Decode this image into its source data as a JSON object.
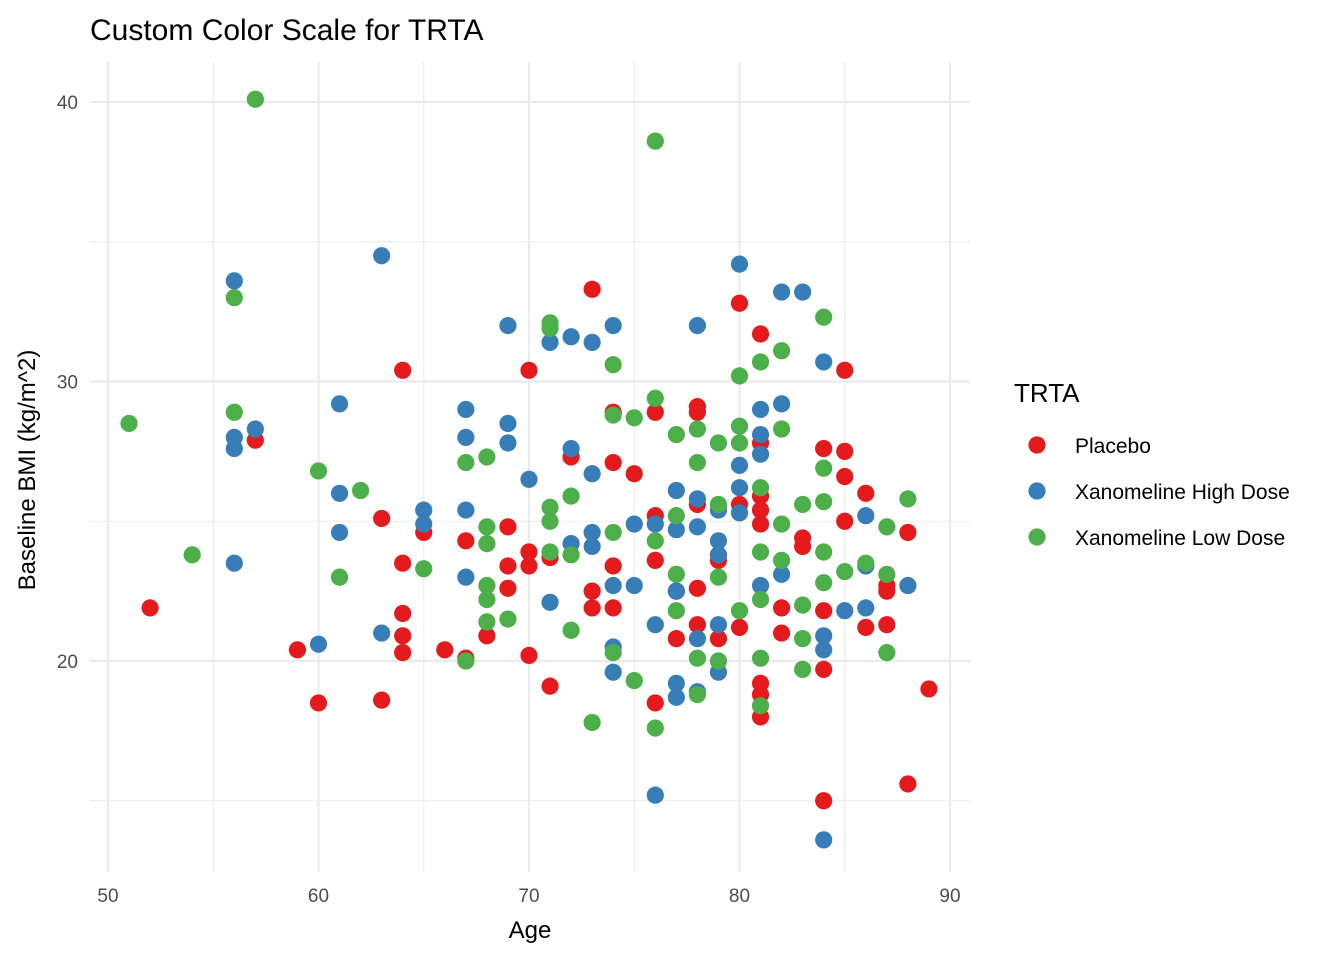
{
  "chart_data": {
    "type": "scatter",
    "title": "Custom Color Scale for TRTA",
    "xlabel": "Age",
    "ylabel": "Baseline BMI (kg/m^2)",
    "xlim": [
      49.1,
      90.9
    ],
    "ylim": [
      13.0,
      41.4
    ],
    "xticks": [
      50,
      60,
      70,
      80,
      90
    ],
    "yticks": [
      20,
      30,
      40
    ],
    "grid": true,
    "legend": {
      "title": "TRTA",
      "position": "right"
    },
    "series": [
      {
        "name": "Placebo",
        "color": "#E41A1C",
        "points": [
          [
            52,
            21.9
          ],
          [
            57,
            27.9
          ],
          [
            59,
            20.4
          ],
          [
            60,
            18.5
          ],
          [
            63,
            25.1
          ],
          [
            63,
            18.6
          ],
          [
            64,
            30.4
          ],
          [
            64,
            23.5
          ],
          [
            64,
            21.7
          ],
          [
            64,
            20.9
          ],
          [
            64,
            20.3
          ],
          [
            65,
            24.6
          ],
          [
            66,
            20.4
          ],
          [
            67,
            24.3
          ],
          [
            67,
            20.1
          ],
          [
            68,
            20.9
          ],
          [
            69,
            24.8
          ],
          [
            69,
            23.4
          ],
          [
            69,
            22.6
          ],
          [
            70,
            30.4
          ],
          [
            70,
            23.9
          ],
          [
            70,
            23.4
          ],
          [
            70,
            20.2
          ],
          [
            71,
            23.7
          ],
          [
            71,
            19.1
          ],
          [
            72,
            27.3
          ],
          [
            73,
            33.3
          ],
          [
            73,
            22.5
          ],
          [
            73,
            21.9
          ],
          [
            74,
            28.9
          ],
          [
            74,
            27.1
          ],
          [
            74,
            23.4
          ],
          [
            74,
            21.9
          ],
          [
            75,
            26.7
          ],
          [
            76,
            25.2
          ],
          [
            76,
            23.6
          ],
          [
            76,
            18.5
          ],
          [
            76,
            28.9
          ],
          [
            77,
            22.5
          ],
          [
            77,
            20.8
          ],
          [
            78,
            29.1
          ],
          [
            78,
            28.9
          ],
          [
            78,
            25.6
          ],
          [
            78,
            22.6
          ],
          [
            78,
            21.3
          ],
          [
            79,
            23.8
          ],
          [
            79,
            23.6
          ],
          [
            79,
            20.8
          ],
          [
            80,
            32.8
          ],
          [
            80,
            25.6
          ],
          [
            80,
            21.2
          ],
          [
            81,
            31.7
          ],
          [
            81,
            27.8
          ],
          [
            81,
            25.9
          ],
          [
            81,
            25.4
          ],
          [
            81,
            24.9
          ],
          [
            81,
            19.2
          ],
          [
            81,
            18.8
          ],
          [
            81,
            18.0
          ],
          [
            82,
            21.9
          ],
          [
            82,
            21.0
          ],
          [
            83,
            24.4
          ],
          [
            83,
            24.1
          ],
          [
            84,
            27.6
          ],
          [
            84,
            21.8
          ],
          [
            84,
            15.0
          ],
          [
            84,
            19.7
          ],
          [
            85,
            30.4
          ],
          [
            85,
            27.5
          ],
          [
            85,
            26.6
          ],
          [
            85,
            25.0
          ],
          [
            86,
            26.0
          ],
          [
            86,
            21.2
          ],
          [
            87,
            22.7
          ],
          [
            87,
            22.5
          ],
          [
            87,
            21.3
          ],
          [
            88,
            24.6
          ],
          [
            88,
            15.6
          ],
          [
            89,
            19.0
          ]
        ]
      },
      {
        "name": "Xanomeline High Dose",
        "color": "#377EB8",
        "points": [
          [
            56,
            33.6
          ],
          [
            56,
            28.0
          ],
          [
            56,
            27.6
          ],
          [
            56,
            23.5
          ],
          [
            57,
            28.3
          ],
          [
            60,
            20.6
          ],
          [
            61,
            29.2
          ],
          [
            61,
            26.0
          ],
          [
            61,
            24.6
          ],
          [
            63,
            34.5
          ],
          [
            63,
            21.0
          ],
          [
            65,
            25.4
          ],
          [
            65,
            24.9
          ],
          [
            67,
            29.0
          ],
          [
            67,
            28.0
          ],
          [
            67,
            25.4
          ],
          [
            67,
            23.0
          ],
          [
            69,
            32.0
          ],
          [
            69,
            28.5
          ],
          [
            69,
            27.8
          ],
          [
            70,
            26.5
          ],
          [
            71,
            31.4
          ],
          [
            71,
            22.1
          ],
          [
            72,
            31.6
          ],
          [
            72,
            27.6
          ],
          [
            72,
            24.2
          ],
          [
            73,
            31.4
          ],
          [
            73,
            26.7
          ],
          [
            73,
            24.6
          ],
          [
            73,
            24.1
          ],
          [
            74,
            32.0
          ],
          [
            74,
            22.7
          ],
          [
            74,
            20.5
          ],
          [
            74,
            19.6
          ],
          [
            75,
            24.9
          ],
          [
            75,
            22.7
          ],
          [
            76,
            24.9
          ],
          [
            76,
            21.3
          ],
          [
            76,
            15.2
          ],
          [
            77,
            26.1
          ],
          [
            77,
            24.7
          ],
          [
            77,
            22.5
          ],
          [
            77,
            19.2
          ],
          [
            77,
            18.7
          ],
          [
            78,
            32.0
          ],
          [
            78,
            25.8
          ],
          [
            78,
            24.8
          ],
          [
            78,
            20.8
          ],
          [
            78,
            18.9
          ],
          [
            79,
            25.4
          ],
          [
            79,
            24.3
          ],
          [
            79,
            23.8
          ],
          [
            79,
            21.3
          ],
          [
            79,
            19.6
          ],
          [
            80,
            34.2
          ],
          [
            80,
            27.0
          ],
          [
            80,
            26.2
          ],
          [
            80,
            25.3
          ],
          [
            81,
            29.0
          ],
          [
            81,
            28.1
          ],
          [
            81,
            27.4
          ],
          [
            81,
            22.7
          ],
          [
            82,
            33.2
          ],
          [
            82,
            29.2
          ],
          [
            82,
            23.1
          ],
          [
            83,
            33.2
          ],
          [
            84,
            30.7
          ],
          [
            84,
            20.9
          ],
          [
            84,
            20.4
          ],
          [
            84,
            13.6
          ],
          [
            85,
            21.8
          ],
          [
            86,
            25.2
          ],
          [
            86,
            23.4
          ],
          [
            86,
            21.9
          ],
          [
            88,
            22.7
          ]
        ]
      },
      {
        "name": "Xanomeline Low Dose",
        "color": "#4DAF4A",
        "points": [
          [
            51,
            28.5
          ],
          [
            54,
            23.8
          ],
          [
            56,
            33.0
          ],
          [
            56,
            28.9
          ],
          [
            57,
            40.1
          ],
          [
            60,
            26.8
          ],
          [
            61,
            23.0
          ],
          [
            62,
            26.1
          ],
          [
            65,
            23.3
          ],
          [
            67,
            27.1
          ],
          [
            67,
            20.0
          ],
          [
            68,
            27.3
          ],
          [
            68,
            24.8
          ],
          [
            68,
            24.2
          ],
          [
            68,
            22.7
          ],
          [
            68,
            22.2
          ],
          [
            68,
            21.4
          ],
          [
            69,
            21.5
          ],
          [
            71,
            32.1
          ],
          [
            71,
            31.9
          ],
          [
            71,
            25.5
          ],
          [
            71,
            25.0
          ],
          [
            71,
            23.9
          ],
          [
            72,
            25.9
          ],
          [
            72,
            23.8
          ],
          [
            72,
            21.1
          ],
          [
            73,
            17.8
          ],
          [
            74,
            30.6
          ],
          [
            74,
            28.8
          ],
          [
            74,
            24.6
          ],
          [
            74,
            20.3
          ],
          [
            75,
            28.7
          ],
          [
            75,
            19.3
          ],
          [
            76,
            38.6
          ],
          [
            76,
            29.4
          ],
          [
            76,
            24.3
          ],
          [
            76,
            17.6
          ],
          [
            77,
            28.1
          ],
          [
            77,
            25.2
          ],
          [
            77,
            23.1
          ],
          [
            77,
            21.8
          ],
          [
            78,
            28.3
          ],
          [
            78,
            27.1
          ],
          [
            78,
            20.1
          ],
          [
            78,
            18.8
          ],
          [
            79,
            27.8
          ],
          [
            79,
            25.6
          ],
          [
            79,
            23.0
          ],
          [
            79,
            20.0
          ],
          [
            80,
            30.2
          ],
          [
            80,
            28.4
          ],
          [
            80,
            27.8
          ],
          [
            80,
            21.8
          ],
          [
            81,
            30.7
          ],
          [
            81,
            26.2
          ],
          [
            81,
            23.9
          ],
          [
            81,
            22.2
          ],
          [
            81,
            20.1
          ],
          [
            81,
            18.4
          ],
          [
            82,
            31.1
          ],
          [
            82,
            28.3
          ],
          [
            82,
            24.9
          ],
          [
            82,
            23.6
          ],
          [
            83,
            25.6
          ],
          [
            83,
            22.0
          ],
          [
            83,
            20.8
          ],
          [
            83,
            19.7
          ],
          [
            84,
            32.3
          ],
          [
            84,
            26.9
          ],
          [
            84,
            25.7
          ],
          [
            84,
            23.9
          ],
          [
            84,
            22.8
          ],
          [
            85,
            23.2
          ],
          [
            86,
            23.5
          ],
          [
            87,
            24.8
          ],
          [
            87,
            23.1
          ],
          [
            87,
            20.3
          ],
          [
            88,
            25.8
          ]
        ]
      }
    ]
  }
}
